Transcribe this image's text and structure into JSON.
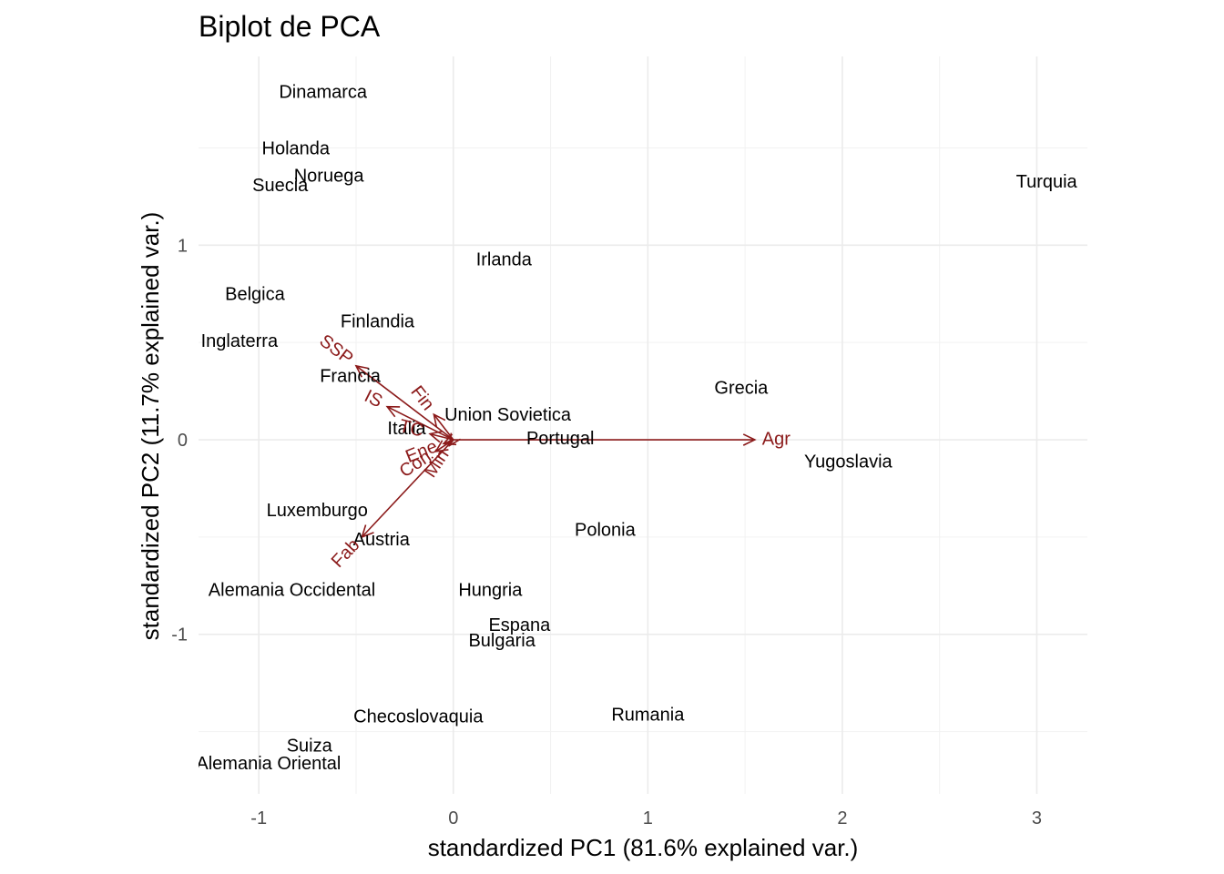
{
  "chart_data": {
    "type": "scatter",
    "title": "Biplot de PCA",
    "xlabel": "standardized PC1 (81.6% explained var.)",
    "ylabel": "standardized PC2 (11.7% explained var.)",
    "xlim": [
      -1.31,
      3.26
    ],
    "ylim": [
      -1.82,
      1.97
    ],
    "x_ticks": [
      -1,
      0,
      1,
      2,
      3
    ],
    "x_tick_labels": [
      "-1",
      "0",
      "1",
      "2",
      "3"
    ],
    "y_ticks": [
      -1,
      0,
      1
    ],
    "y_tick_labels": [
      "-1",
      "0",
      "1"
    ],
    "grid": true,
    "points": [
      {
        "label": "Dinamarca",
        "x": -0.67,
        "y": 1.79
      },
      {
        "label": "Holanda",
        "x": -0.81,
        "y": 1.5
      },
      {
        "label": "Noruega",
        "x": -0.64,
        "y": 1.36
      },
      {
        "label": "Suecia",
        "x": -0.89,
        "y": 1.31
      },
      {
        "label": "Turquia",
        "x": 3.05,
        "y": 1.33
      },
      {
        "label": "Irlanda",
        "x": 0.26,
        "y": 0.93
      },
      {
        "label": "Belgica",
        "x": -1.02,
        "y": 0.75
      },
      {
        "label": "Finlandia",
        "x": -0.39,
        "y": 0.61
      },
      {
        "label": "Inglaterra",
        "x": -1.1,
        "y": 0.51
      },
      {
        "label": "Francia",
        "x": -0.53,
        "y": 0.33
      },
      {
        "label": "Grecia",
        "x": 1.48,
        "y": 0.27
      },
      {
        "label": "Union Sovietica",
        "x": 0.28,
        "y": 0.13
      },
      {
        "label": "Italia",
        "x": -0.24,
        "y": 0.06
      },
      {
        "label": "Portugal",
        "x": 0.55,
        "y": 0.01
      },
      {
        "label": "Yugoslavia",
        "x": 2.03,
        "y": -0.11
      },
      {
        "label": "Luxemburgo",
        "x": -0.7,
        "y": -0.36
      },
      {
        "label": "Polonia",
        "x": 0.78,
        "y": -0.46
      },
      {
        "label": "Austria",
        "x": -0.37,
        "y": -0.51
      },
      {
        "label": "Alemania Occidental",
        "x": -0.83,
        "y": -0.77
      },
      {
        "label": "Hungria",
        "x": 0.19,
        "y": -0.77
      },
      {
        "label": "Espana",
        "x": 0.34,
        "y": -0.95
      },
      {
        "label": "Bulgaria",
        "x": 0.25,
        "y": -1.03
      },
      {
        "label": "Checoslovaquia",
        "x": -0.18,
        "y": -1.42
      },
      {
        "label": "Rumania",
        "x": 1.0,
        "y": -1.41
      },
      {
        "label": "Suiza",
        "x": -0.74,
        "y": -1.57
      },
      {
        "label": "Alemania Oriental",
        "x": -0.95,
        "y": -1.66
      }
    ],
    "variables": [
      {
        "label": "Agr",
        "x": 1.55,
        "y": 0.0
      },
      {
        "label": "SSP",
        "x": -0.5,
        "y": 0.38
      },
      {
        "label": "IS",
        "x": -0.34,
        "y": 0.17
      },
      {
        "label": "Fin",
        "x": -0.1,
        "y": 0.13
      },
      {
        "label": "TC",
        "x": -0.12,
        "y": 0.03
      },
      {
        "label": "Con",
        "x": -0.09,
        "y": -0.06
      },
      {
        "label": "Ene",
        "x": -0.05,
        "y": -0.02
      },
      {
        "label": "Min",
        "x": -0.02,
        "y": -0.03
      },
      {
        "label": "Fab",
        "x": -0.47,
        "y": -0.5
      }
    ],
    "arrow_color": "#8b1a1a"
  }
}
